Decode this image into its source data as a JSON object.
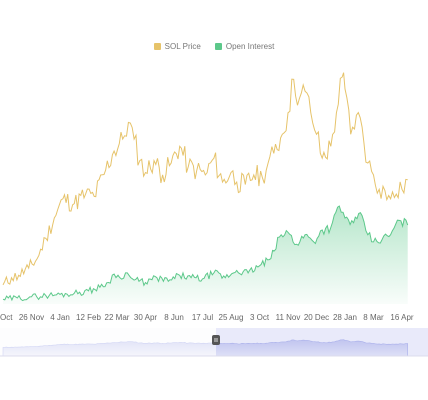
{
  "chart_data": {
    "type": "line",
    "title": "",
    "xlabel": "",
    "ylabel": "",
    "x_tick_labels": [
      "Oct",
      "26 Nov",
      "4 Jan",
      "12 Feb",
      "22 Mar",
      "30 Apr",
      "8 Jun",
      "17 Jul",
      "25 Aug",
      "3 Oct",
      "11 Nov",
      "20 Dec",
      "28 Jan",
      "8 Mar",
      "16 Apr"
    ],
    "y_axis_visible": false,
    "grid": false,
    "legend_position": "top-center",
    "series": [
      {
        "name": "SOL Price",
        "color": "#e6c36a",
        "anchors": [
          [
            0,
            16
          ],
          [
            0.3,
            22
          ],
          [
            0.55,
            24
          ],
          [
            0.9,
            30
          ],
          [
            1.2,
            38
          ],
          [
            1.5,
            55
          ],
          [
            1.8,
            72
          ],
          [
            2.1,
            88
          ],
          [
            2.5,
            84
          ],
          [
            2.9,
            92
          ],
          [
            3.2,
            90
          ],
          [
            3.6,
            112
          ],
          [
            3.9,
            128
          ],
          [
            4.2,
            138
          ],
          [
            4.4,
            152
          ],
          [
            4.6,
            138
          ],
          [
            4.8,
            120
          ],
          [
            5.0,
            110
          ],
          [
            5.3,
            120
          ],
          [
            5.6,
            108
          ],
          [
            5.9,
            118
          ],
          [
            6.2,
            132
          ],
          [
            6.5,
            115
          ],
          [
            6.8,
            112
          ],
          [
            7.1,
            108
          ],
          [
            7.4,
            122
          ],
          [
            7.7,
            102
          ],
          [
            8.0,
            110
          ],
          [
            8.2,
            102
          ],
          [
            8.5,
            100
          ],
          [
            8.8,
            108
          ],
          [
            9.1,
            106
          ],
          [
            9.3,
            118
          ],
          [
            9.5,
            126
          ],
          [
            9.8,
            142
          ],
          [
            10.0,
            160
          ],
          [
            10.2,
            188
          ],
          [
            10.4,
            172
          ],
          [
            10.6,
            178
          ],
          [
            10.8,
            160
          ],
          [
            11.0,
            142
          ],
          [
            11.2,
            122
          ],
          [
            11.5,
            132
          ],
          [
            11.7,
            160
          ],
          [
            11.9,
            190
          ],
          [
            12.0,
            180
          ],
          [
            12.2,
            142
          ],
          [
            12.4,
            158
          ],
          [
            12.6,
            148
          ],
          [
            12.8,
            118
          ],
          [
            13.0,
            108
          ],
          [
            13.2,
            96
          ],
          [
            13.4,
            95
          ],
          [
            13.6,
            88
          ],
          [
            13.8,
            92
          ],
          [
            14.0,
            96
          ],
          [
            14.2,
            104
          ]
        ]
      },
      {
        "name": "Open Interest",
        "color": "#5cc88a",
        "anchors": [
          [
            0,
            4
          ],
          [
            0.5,
            5
          ],
          [
            1.0,
            6
          ],
          [
            1.5,
            7
          ],
          [
            2.0,
            8
          ],
          [
            2.5,
            9
          ],
          [
            3.0,
            11
          ],
          [
            3.4,
            14
          ],
          [
            3.7,
            18
          ],
          [
            3.9,
            25
          ],
          [
            4.1,
            22
          ],
          [
            4.3,
            26
          ],
          [
            4.6,
            20
          ],
          [
            5.0,
            18
          ],
          [
            5.4,
            22
          ],
          [
            5.8,
            19
          ],
          [
            6.2,
            24
          ],
          [
            6.6,
            22
          ],
          [
            7.0,
            21
          ],
          [
            7.4,
            26
          ],
          [
            7.8,
            22
          ],
          [
            8.2,
            28
          ],
          [
            8.6,
            26
          ],
          [
            9.0,
            32
          ],
          [
            9.4,
            38
          ],
          [
            9.7,
            56
          ],
          [
            10.0,
            60
          ],
          [
            10.3,
            50
          ],
          [
            10.6,
            58
          ],
          [
            10.9,
            52
          ],
          [
            11.2,
            62
          ],
          [
            11.5,
            64
          ],
          [
            11.8,
            82
          ],
          [
            12.0,
            72
          ],
          [
            12.3,
            68
          ],
          [
            12.6,
            74
          ],
          [
            12.8,
            58
          ],
          [
            13.0,
            52
          ],
          [
            13.3,
            54
          ],
          [
            13.6,
            58
          ],
          [
            13.9,
            70
          ],
          [
            14.2,
            66
          ]
        ]
      }
    ]
  }
}
